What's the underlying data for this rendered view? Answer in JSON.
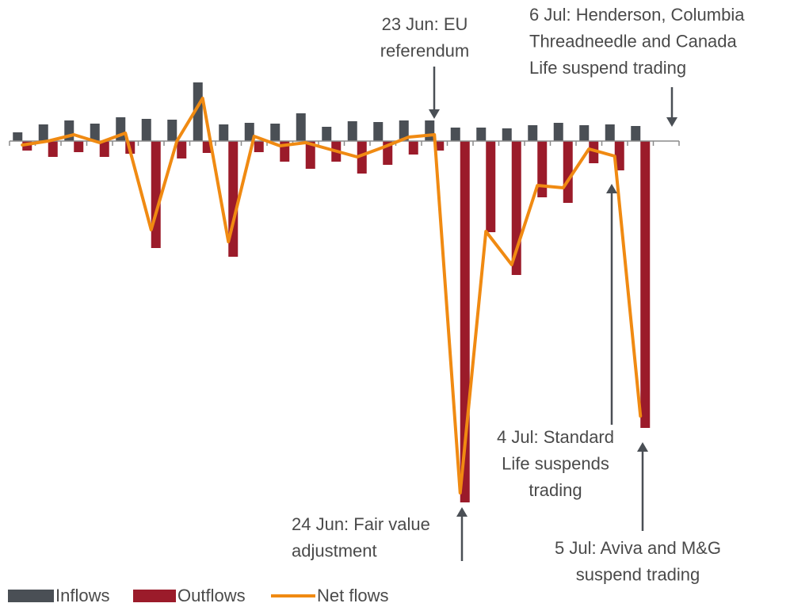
{
  "chart_data": {
    "type": "bar_line",
    "categories": [
      null,
      null,
      null,
      null,
      null,
      null,
      null,
      null,
      null,
      null,
      null,
      null,
      null,
      null,
      null,
      null,
      null,
      null,
      null,
      null,
      null,
      null,
      null,
      null,
      null,
      null
    ],
    "series": [
      {
        "name": "Inflows",
        "type": "bar",
        "color": "#4a4f55",
        "values": [
          11,
          21,
          26,
          22,
          30,
          28,
          27,
          74,
          21,
          23,
          22,
          35,
          18,
          25,
          24,
          26,
          26,
          17,
          17,
          16,
          20,
          23,
          20,
          21,
          19,
          null
        ]
      },
      {
        "name": "Outflows",
        "type": "bar",
        "color": "#9b1b2a",
        "values": [
          -12,
          -20,
          -14,
          -20,
          -16,
          -135,
          -22,
          -15,
          -146,
          -14,
          -26,
          -35,
          -26,
          -41,
          -30,
          -17,
          -12,
          -456,
          -115,
          -169,
          -71,
          -78,
          -28,
          -37,
          -362,
          null
        ]
      },
      {
        "name": "Net flows",
        "type": "line",
        "color": "#f08a12",
        "values": [
          -5,
          0,
          8,
          -2,
          10,
          -112,
          0,
          54,
          -127,
          6,
          -6,
          -2,
          -11,
          -20,
          -8,
          5,
          8,
          -444,
          -114,
          -156,
          -56,
          -59,
          -10,
          -19,
          -347,
          null
        ]
      }
    ],
    "ylim": [
      -470,
      90
    ],
    "annotations": [
      [
        "23 Jun: EU",
        "referendum"
      ],
      [
        "6 Jul: Henderson, Columbia",
        "Threadneedle and Canada",
        "Life suspend trading"
      ],
      [
        "4 Jul: Standard",
        "Life suspends",
        "trading"
      ],
      [
        "24 Jun: Fair value",
        "adjustment"
      ],
      [
        "5 Jul: Aviva and M&G",
        "suspend trading"
      ]
    ]
  }
}
